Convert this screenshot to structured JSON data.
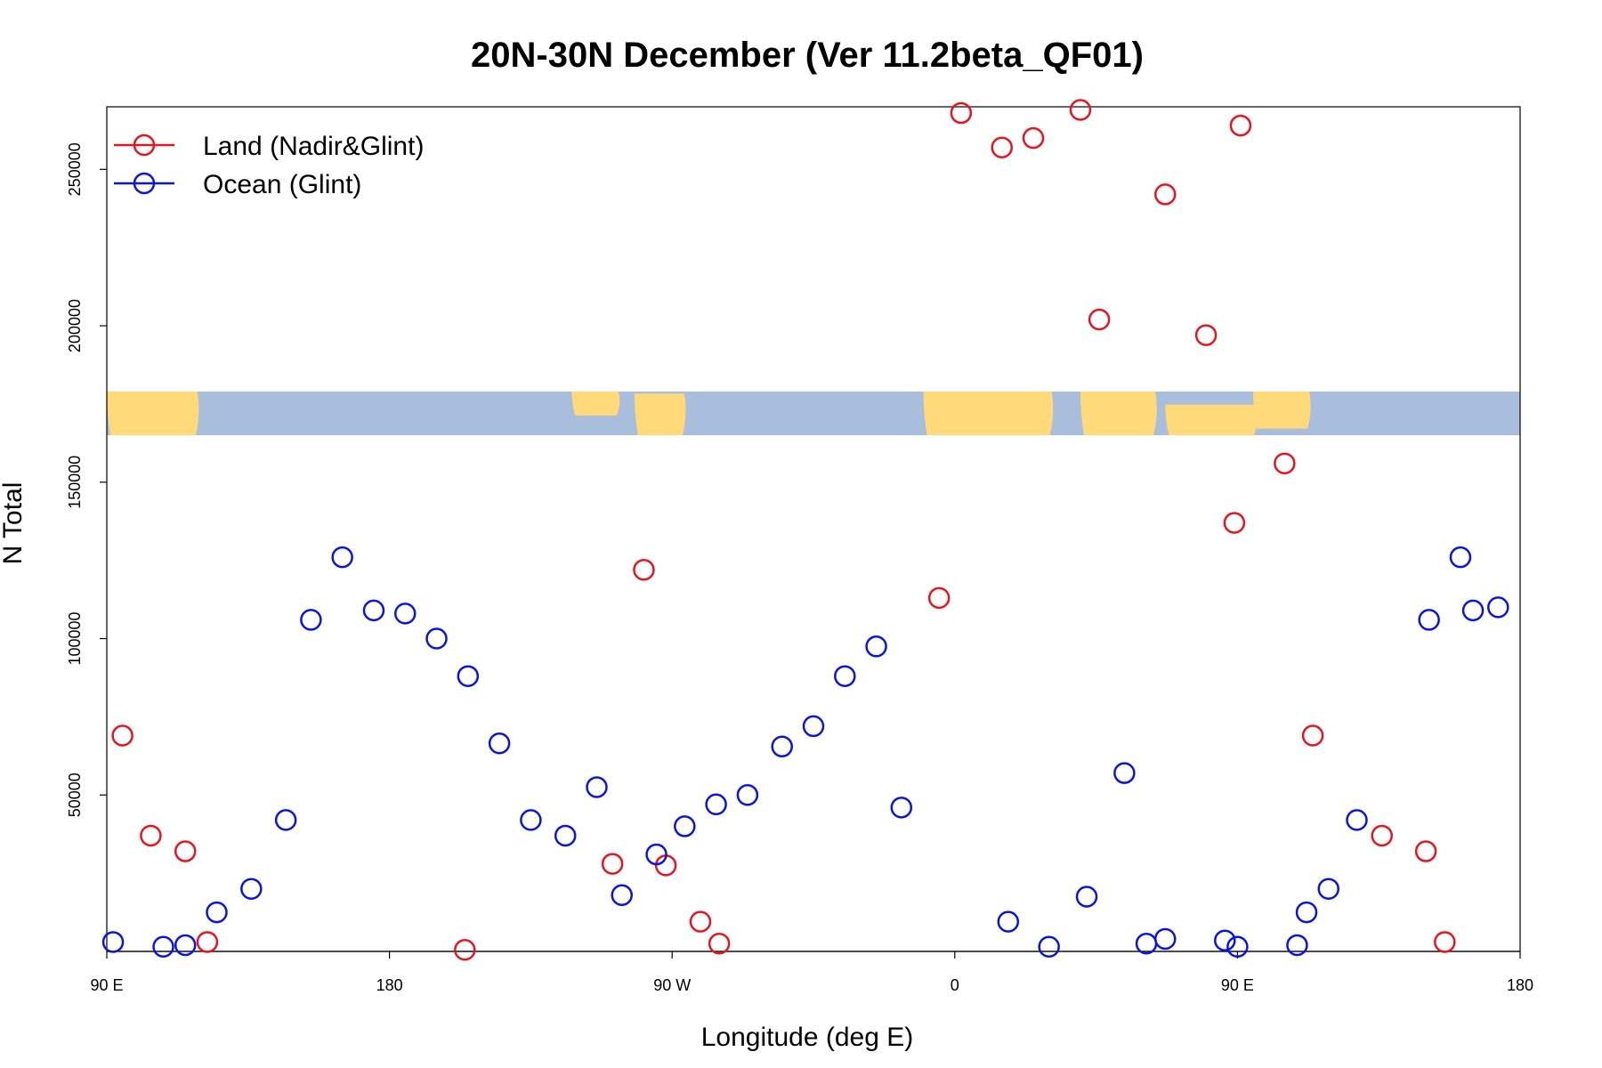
{
  "chart_data": {
    "type": "scatter",
    "title": "20N-30N December (Ver 11.2beta_QF01)",
    "xlabel": "Longitude (deg E)",
    "ylabel": "N Total",
    "xlim": [
      90,
      540
    ],
    "ylim": [
      0,
      270000
    ],
    "x_ticks": [
      {
        "value": 90,
        "label": "90 E"
      },
      {
        "value": 180,
        "label": "180"
      },
      {
        "value": 270,
        "label": "90 W"
      },
      {
        "value": 360,
        "label": "0"
      },
      {
        "value": 450,
        "label": "90 E"
      },
      {
        "value": 540,
        "label": "180"
      }
    ],
    "y_ticks": [
      {
        "value": 50000,
        "label": "50000"
      },
      {
        "value": 100000,
        "label": "100000"
      },
      {
        "value": 150000,
        "label": "150000"
      },
      {
        "value": 200000,
        "label": "200000"
      },
      {
        "value": 250000,
        "label": "250000"
      }
    ],
    "map_band": {
      "description": "world map strip 20N-30N",
      "y_range": [
        165000,
        179000
      ],
      "ocean_color": "#a8bedc",
      "land_color": "#ffd97a"
    },
    "legend": {
      "position": "top-left"
    },
    "series": [
      {
        "name": "Land (Nadir&Glint)",
        "color": "#e8141e",
        "x": [
          95,
          104,
          115,
          122,
          204,
          251,
          261,
          268,
          279,
          285,
          355,
          362,
          375,
          385,
          400,
          406,
          427,
          440,
          449,
          451,
          465,
          474,
          496,
          510,
          516
        ],
        "y": [
          69000,
          37000,
          32000,
          3000,
          500,
          28000,
          122000,
          27500,
          9500,
          2500,
          113000,
          268000,
          257000,
          260000,
          269000,
          202000,
          242000,
          197000,
          137000,
          264000,
          156000,
          69000,
          37000,
          32000,
          3000
        ]
      },
      {
        "name": "Ocean (Glint)",
        "color": "#0a14e6",
        "x": [
          92,
          108,
          115,
          125,
          136,
          147,
          155,
          165,
          175,
          185,
          195,
          205,
          215,
          225,
          236,
          246,
          254,
          265,
          274,
          284,
          294,
          305,
          315,
          325,
          335,
          343,
          377,
          390,
          402,
          414,
          421,
          427,
          446,
          450,
          469,
          472,
          479,
          488,
          511,
          521,
          525,
          533
        ],
        "y": [
          3000,
          1500,
          2000,
          12500,
          20000,
          42000,
          106000,
          126000,
          109000,
          108000,
          100000,
          88000,
          66500,
          42000,
          37000,
          52500,
          18000,
          31000,
          40000,
          47000,
          50000,
          65500,
          72000,
          88000,
          97500,
          46000,
          9500,
          1500,
          17500,
          57000,
          2500,
          4000,
          3500,
          1500,
          2000,
          12500,
          20000,
          42000,
          106000,
          126000,
          109000,
          110000
        ]
      }
    ]
  }
}
